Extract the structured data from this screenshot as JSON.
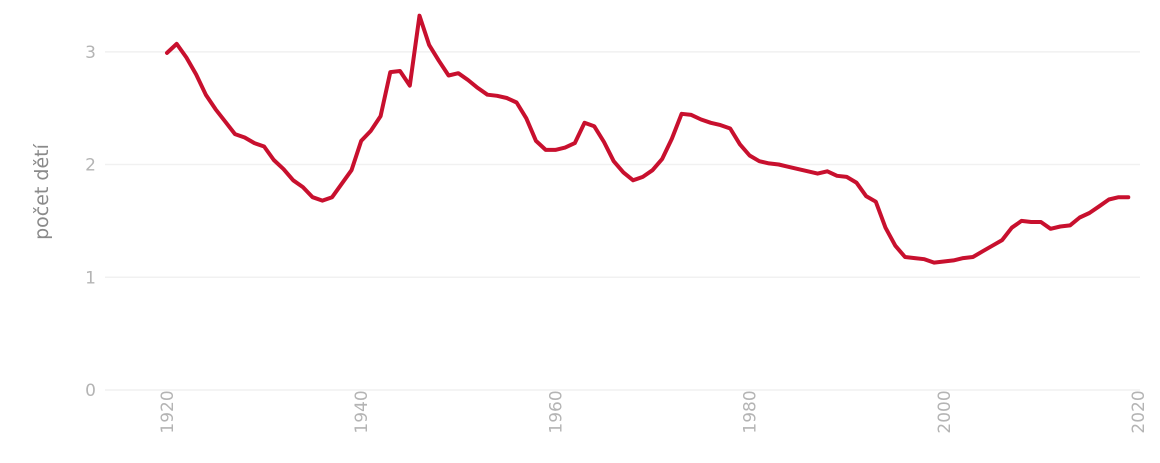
{
  "chart_data": {
    "type": "line",
    "title": "",
    "xlabel": "",
    "ylabel": "počet dětí",
    "xlim": [
      1920,
      2020
    ],
    "ylim": [
      0,
      3.3
    ],
    "x_ticks": [
      "1920",
      "1940",
      "1960",
      "1980",
      "2000",
      "2020"
    ],
    "y_ticks": [
      "0",
      "1",
      "2",
      "3"
    ],
    "grid": true,
    "legend": "none",
    "line_color": "#c8102e",
    "series": [
      {
        "x": [
          1920,
          1921,
          1922,
          1923,
          1924,
          1925,
          1926,
          1927,
          1928,
          1929,
          1930,
          1931,
          1932,
          1933,
          1934,
          1935,
          1936,
          1937,
          1938,
          1939,
          1940,
          1941,
          1942,
          1943,
          1944,
          1945,
          1946,
          1947,
          1948,
          1949,
          1950,
          1951,
          1952,
          1953,
          1954,
          1955,
          1956,
          1957,
          1958,
          1959,
          1960,
          1961,
          1962,
          1963,
          1964,
          1965,
          1966,
          1967,
          1968,
          1969,
          1970,
          1971,
          1972,
          1973,
          1974,
          1975,
          1976,
          1977,
          1978,
          1979,
          1980,
          1981,
          1982,
          1983,
          1984,
          1985,
          1986,
          1987,
          1988,
          1989,
          1990,
          1991,
          1992,
          1993,
          1994,
          1995,
          1996,
          1997,
          1998,
          1999,
          2000,
          2001,
          2002,
          2003,
          2004,
          2005,
          2006,
          2007,
          2008,
          2009,
          2010,
          2011,
          2012,
          2013,
          2014,
          2015,
          2016,
          2017,
          2018,
          2019
        ],
        "values": [
          2.99,
          3.07,
          2.95,
          2.8,
          2.62,
          2.49,
          2.38,
          2.27,
          2.24,
          2.19,
          2.16,
          2.04,
          1.96,
          1.86,
          1.8,
          1.71,
          1.68,
          1.71,
          1.83,
          1.95,
          2.21,
          2.3,
          2.43,
          2.82,
          2.83,
          2.7,
          3.32,
          3.06,
          2.92,
          2.79,
          2.81,
          2.75,
          2.68,
          2.62,
          2.61,
          2.59,
          2.55,
          2.41,
          2.21,
          2.13,
          2.13,
          2.15,
          2.19,
          2.37,
          2.34,
          2.2,
          2.03,
          1.93,
          1.86,
          1.89,
          1.95,
          2.05,
          2.23,
          2.45,
          2.44,
          2.4,
          2.37,
          2.35,
          2.32,
          2.18,
          2.08,
          2.03,
          2.01,
          2.0,
          1.98,
          1.96,
          1.94,
          1.92,
          1.94,
          1.9,
          1.89,
          1.84,
          1.72,
          1.67,
          1.44,
          1.28,
          1.18,
          1.17,
          1.16,
          1.13,
          1.14,
          1.15,
          1.17,
          1.18,
          1.23,
          1.28,
          1.33,
          1.44,
          1.5,
          1.49,
          1.49,
          1.43,
          1.45,
          1.46,
          1.53,
          1.57,
          1.63,
          1.69,
          1.71,
          1.71
        ]
      }
    ]
  }
}
